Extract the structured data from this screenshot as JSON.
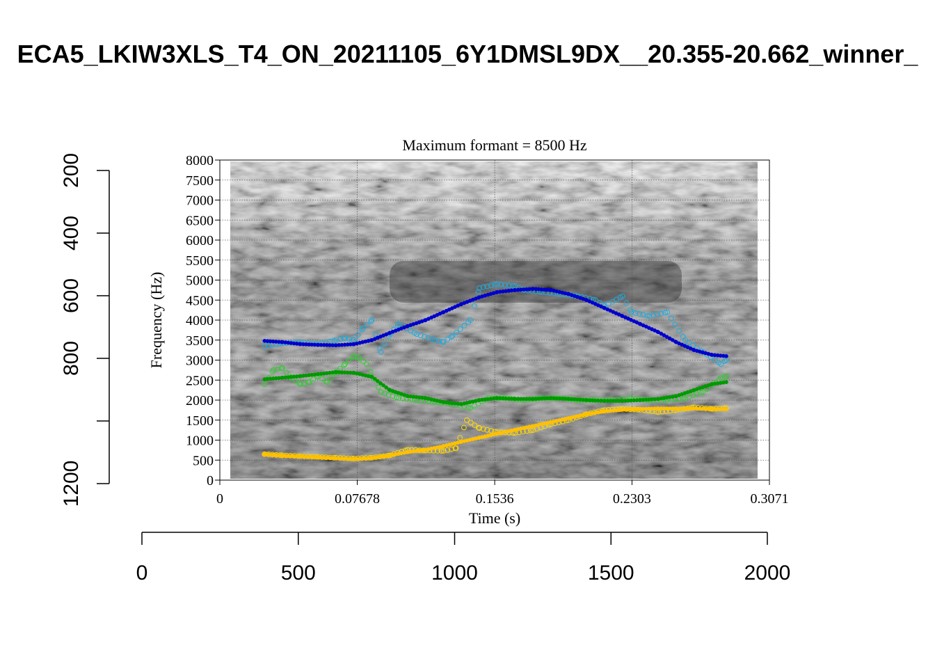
{
  "figure_title": "ECA5_LKIW3XLS_T4_ON_20211105_6Y1DMSL9DX__20.355-20.662_winner_",
  "chart_data": {
    "type": "scatter",
    "title": "Maximum formant = 8500 Hz",
    "xlabel": "Time (s)",
    "ylabel": "Frequency (Hz)",
    "xlim": [
      0,
      0.3071
    ],
    "ylim": [
      0,
      8000
    ],
    "x_ticks": [
      "0",
      "0.07678",
      "0.1536",
      "0.2303",
      "0.3071"
    ],
    "x_tick_values": [
      0,
      0.07678,
      0.1536,
      0.2303,
      0.3071
    ],
    "y_ticks": [
      "0",
      "500",
      "1000",
      "1500",
      "2000",
      "2500",
      "3000",
      "3500",
      "4000",
      "4500",
      "5000",
      "5500",
      "6000",
      "6500",
      "7000",
      "7500",
      "8000"
    ],
    "grid": true,
    "background": "grayscale spectrogram",
    "outer_left_axis": {
      "ticks": [
        "200",
        "400",
        "600",
        "800",
        "1200"
      ],
      "tick_values": [
        200,
        400,
        600,
        800,
        1200
      ],
      "range": [
        200,
        1200
      ],
      "reversed": true
    },
    "outer_bottom_axis": {
      "ticks": [
        "0",
        "500",
        "1000",
        "1500",
        "2000"
      ],
      "tick_values": [
        0,
        500,
        1000,
        1500,
        2000
      ],
      "range": [
        0,
        2000
      ]
    },
    "series": [
      {
        "name": "F1 measured",
        "kind": "open",
        "color": "#ffd700",
        "x": [
          0.025,
          0.035,
          0.045,
          0.055,
          0.065,
          0.075,
          0.085,
          0.095,
          0.105,
          0.115,
          0.125,
          0.132,
          0.138,
          0.145,
          0.155,
          0.165,
          0.175,
          0.185,
          0.195,
          0.205,
          0.215,
          0.225,
          0.235,
          0.245,
          0.255,
          0.265,
          0.275,
          0.283
        ],
        "y": [
          650,
          620,
          600,
          580,
          560,
          540,
          560,
          620,
          760,
          740,
          730,
          800,
          1500,
          1300,
          1200,
          1180,
          1250,
          1400,
          1500,
          1650,
          1750,
          1780,
          1760,
          1700,
          1750,
          1820,
          1780,
          1800
        ]
      },
      {
        "name": "F1 smooth",
        "kind": "filled",
        "color": "#ffc000",
        "x": [
          0.025,
          0.035,
          0.045,
          0.055,
          0.065,
          0.075,
          0.085,
          0.095,
          0.105,
          0.115,
          0.125,
          0.135,
          0.145,
          0.155,
          0.165,
          0.175,
          0.185,
          0.195,
          0.205,
          0.215,
          0.225,
          0.235,
          0.245,
          0.255,
          0.265,
          0.275,
          0.283
        ],
        "y": [
          650,
          610,
          590,
          570,
          545,
          525,
          550,
          620,
          700,
          760,
          850,
          960,
          1060,
          1160,
          1260,
          1350,
          1450,
          1550,
          1650,
          1720,
          1760,
          1780,
          1790,
          1790,
          1790,
          1780,
          1770
        ]
      },
      {
        "name": "F2 measured",
        "kind": "open",
        "color": "#33cc33",
        "x": [
          0.025,
          0.03,
          0.035,
          0.04,
          0.045,
          0.05,
          0.055,
          0.06,
          0.065,
          0.07,
          0.075,
          0.078,
          0.082,
          0.09,
          0.1,
          0.11,
          0.12,
          0.13,
          0.14,
          0.15,
          0.16,
          0.17,
          0.18,
          0.19,
          0.2,
          0.21,
          0.22,
          0.23,
          0.24,
          0.25,
          0.26,
          0.27,
          0.28,
          0.283
        ],
        "y": [
          2400,
          2750,
          2800,
          2550,
          2400,
          2450,
          2600,
          2450,
          2700,
          2900,
          3100,
          3050,
          2900,
          2200,
          2050,
          2000,
          1950,
          1900,
          1800,
          2050,
          2050,
          2000,
          2050,
          2050,
          2000,
          2000,
          2000,
          2050,
          2000,
          2000,
          2050,
          2200,
          2550,
          2600
        ]
      },
      {
        "name": "F2 smooth",
        "kind": "filled",
        "color": "#009900",
        "x": [
          0.025,
          0.035,
          0.045,
          0.055,
          0.065,
          0.075,
          0.085,
          0.095,
          0.105,
          0.115,
          0.125,
          0.135,
          0.145,
          0.155,
          0.165,
          0.175,
          0.185,
          0.195,
          0.205,
          0.215,
          0.225,
          0.235,
          0.245,
          0.255,
          0.265,
          0.275,
          0.283
        ],
        "y": [
          2520,
          2560,
          2600,
          2650,
          2700,
          2680,
          2580,
          2250,
          2100,
          2050,
          1950,
          1900,
          2000,
          2050,
          2030,
          2030,
          2050,
          2030,
          2000,
          1980,
          1980,
          2000,
          2030,
          2100,
          2250,
          2400,
          2450
        ]
      },
      {
        "name": "F3 measured",
        "kind": "open",
        "color": "#22aadd",
        "x": [
          0.025,
          0.035,
          0.045,
          0.055,
          0.065,
          0.07,
          0.075,
          0.08,
          0.085,
          0.09,
          0.095,
          0.1,
          0.11,
          0.12,
          0.125,
          0.13,
          0.14,
          0.145,
          0.155,
          0.165,
          0.17,
          0.18,
          0.19,
          0.2,
          0.21,
          0.215,
          0.225,
          0.23,
          0.24,
          0.25,
          0.26,
          0.27,
          0.28,
          0.283
        ],
        "y": [
          3350,
          3420,
          3450,
          3400,
          3500,
          3550,
          3500,
          3800,
          4000,
          3200,
          3650,
          3900,
          3650,
          3500,
          3450,
          3600,
          4000,
          4800,
          4900,
          4850,
          4750,
          4700,
          4650,
          4600,
          4500,
          4350,
          4600,
          4200,
          4100,
          4200,
          3500,
          3200,
          2900,
          3000
        ]
      },
      {
        "name": "F3 smooth",
        "kind": "filled",
        "color": "#0000cc",
        "x": [
          0.025,
          0.035,
          0.045,
          0.055,
          0.065,
          0.075,
          0.085,
          0.095,
          0.105,
          0.115,
          0.125,
          0.135,
          0.145,
          0.155,
          0.165,
          0.175,
          0.185,
          0.195,
          0.205,
          0.215,
          0.225,
          0.235,
          0.245,
          0.255,
          0.265,
          0.275,
          0.283
        ],
        "y": [
          3480,
          3450,
          3400,
          3380,
          3370,
          3400,
          3500,
          3680,
          3850,
          4000,
          4200,
          4400,
          4570,
          4700,
          4750,
          4780,
          4750,
          4650,
          4500,
          4300,
          4100,
          3900,
          3700,
          3450,
          3250,
          3130,
          3100
        ]
      }
    ]
  }
}
